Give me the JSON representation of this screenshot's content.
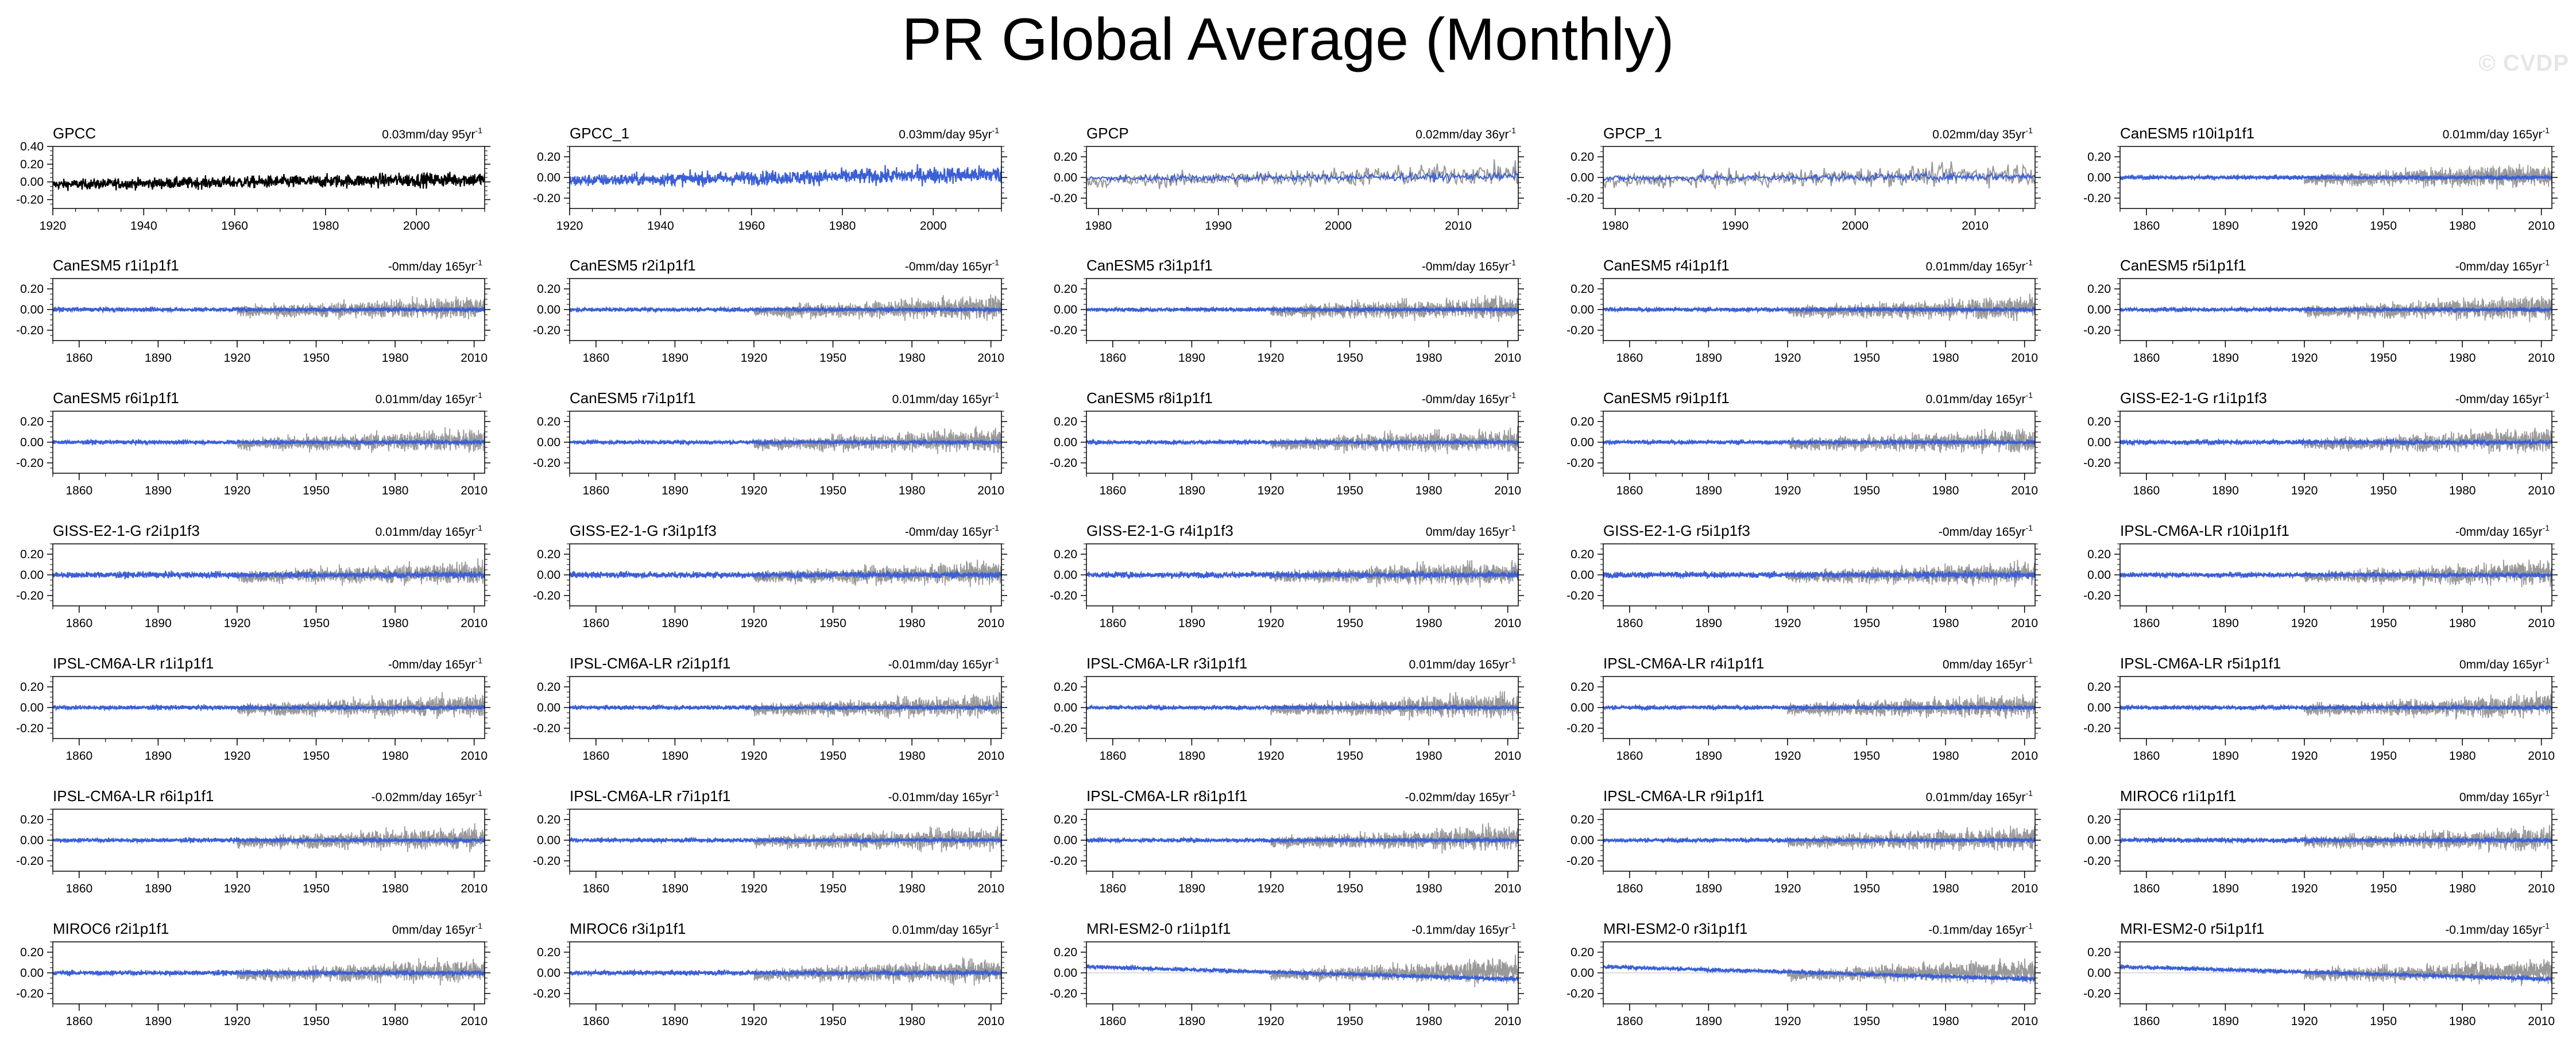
{
  "title": "PR Global Average (Monthly)",
  "watermark": "© CVDP",
  "colors": {
    "obs": "#000000",
    "obs_bg": "#999999",
    "model": "#3a5fd6"
  },
  "chart_data": {
    "type": "line",
    "panels": [
      {
        "name": "GPCC",
        "trend": "0.03mm/day 95yr",
        "style": "obs-black",
        "xlim": [
          1920,
          2015
        ],
        "ylim": [
          -0.3,
          0.4
        ],
        "xticks": [
          1920,
          1940,
          1960,
          1980,
          2000
        ],
        "yticks": [
          "-0.20",
          "0.00",
          "0.20",
          "0.40"
        ],
        "amp": 0.1
      },
      {
        "name": "GPCC_1",
        "trend": "0.03mm/day 95yr",
        "style": "blue",
        "xlim": [
          1920,
          2015
        ],
        "ylim": [
          -0.3,
          0.3
        ],
        "xticks": [
          1920,
          1940,
          1960,
          1980,
          2000
        ],
        "yticks": [
          "-0.20",
          "0.00",
          "0.20"
        ],
        "amp": 0.1
      },
      {
        "name": "GPCP",
        "trend": "0.02mm/day 36yr",
        "style": "blue-over-gray",
        "xlim": [
          1979,
          2015
        ],
        "ylim": [
          -0.3,
          0.3
        ],
        "xticks": [
          1980,
          1990,
          2000,
          2010
        ],
        "yticks": [
          "-0.20",
          "0.00",
          "0.20"
        ],
        "amp": 0.05
      },
      {
        "name": "GPCP_1",
        "trend": "0.02mm/day 35yr",
        "style": "blue-over-gray",
        "xlim": [
          1979,
          2015
        ],
        "ylim": [
          -0.3,
          0.3
        ],
        "xticks": [
          1980,
          1990,
          2000,
          2010
        ],
        "yticks": [
          "-0.20",
          "0.00",
          "0.20"
        ],
        "amp": 0.05
      },
      {
        "name": "CanESM5 r10i1p1f1",
        "trend": "0.01mm/day 165yr",
        "style": "model",
        "amp": 0.035
      },
      {
        "name": "CanESM5 r1i1p1f1",
        "trend": "-0mm/day 165yr",
        "style": "model",
        "amp": 0.035
      },
      {
        "name": "CanESM5 r2i1p1f1",
        "trend": "-0mm/day 165yr",
        "style": "model",
        "amp": 0.035
      },
      {
        "name": "CanESM5 r3i1p1f1",
        "trend": "-0mm/day 165yr",
        "style": "model",
        "amp": 0.035
      },
      {
        "name": "CanESM5 r4i1p1f1",
        "trend": "0.01mm/day 165yr",
        "style": "model",
        "amp": 0.035
      },
      {
        "name": "CanESM5 r5i1p1f1",
        "trend": "-0mm/day 165yr",
        "style": "model",
        "amp": 0.035
      },
      {
        "name": "CanESM5 r6i1p1f1",
        "trend": "0.01mm/day 165yr",
        "style": "model",
        "amp": 0.035
      },
      {
        "name": "CanESM5 r7i1p1f1",
        "trend": "0.01mm/day 165yr",
        "style": "model",
        "amp": 0.035
      },
      {
        "name": "CanESM5 r8i1p1f1",
        "trend": "-0mm/day 165yr",
        "style": "model",
        "amp": 0.035
      },
      {
        "name": "CanESM5 r9i1p1f1",
        "trend": "0.01mm/day 165yr",
        "style": "model",
        "amp": 0.035
      },
      {
        "name": "GISS-E2-1-G r1i1p1f3",
        "trend": "-0mm/day 165yr",
        "style": "model",
        "amp": 0.04
      },
      {
        "name": "GISS-E2-1-G r2i1p1f3",
        "trend": "0.01mm/day 165yr",
        "style": "model",
        "amp": 0.05
      },
      {
        "name": "GISS-E2-1-G r3i1p1f3",
        "trend": "-0mm/day 165yr",
        "style": "model",
        "amp": 0.05
      },
      {
        "name": "GISS-E2-1-G r4i1p1f3",
        "trend": "0mm/day 165yr",
        "style": "model",
        "amp": 0.05
      },
      {
        "name": "GISS-E2-1-G r5i1p1f3",
        "trend": "-0mm/day 165yr",
        "style": "model",
        "amp": 0.05
      },
      {
        "name": "IPSL-CM6A-LR r10i1p1f1",
        "trend": "-0mm/day 165yr",
        "style": "model",
        "amp": 0.04
      },
      {
        "name": "IPSL-CM6A-LR r1i1p1f1",
        "trend": "-0mm/day 165yr",
        "style": "model",
        "amp": 0.035
      },
      {
        "name": "IPSL-CM6A-LR r2i1p1f1",
        "trend": "-0.01mm/day 165yr",
        "style": "model",
        "amp": 0.035
      },
      {
        "name": "IPSL-CM6A-LR r3i1p1f1",
        "trend": "0.01mm/day 165yr",
        "style": "model",
        "amp": 0.035
      },
      {
        "name": "IPSL-CM6A-LR r4i1p1f1",
        "trend": "0mm/day 165yr",
        "style": "model",
        "amp": 0.035
      },
      {
        "name": "IPSL-CM6A-LR r5i1p1f1",
        "trend": "0mm/day 165yr",
        "style": "model",
        "amp": 0.035
      },
      {
        "name": "IPSL-CM6A-LR r6i1p1f1",
        "trend": "-0.02mm/day 165yr",
        "style": "model",
        "amp": 0.035
      },
      {
        "name": "IPSL-CM6A-LR r7i1p1f1",
        "trend": "-0.01mm/day 165yr",
        "style": "model",
        "amp": 0.035
      },
      {
        "name": "IPSL-CM6A-LR r8i1p1f1",
        "trend": "-0.02mm/day 165yr",
        "style": "model",
        "amp": 0.035
      },
      {
        "name": "IPSL-CM6A-LR r9i1p1f1",
        "trend": "0.01mm/day 165yr",
        "style": "model",
        "amp": 0.035
      },
      {
        "name": "MIROC6 r1i1p1f1",
        "trend": "0mm/day 165yr",
        "style": "model",
        "amp": 0.04
      },
      {
        "name": "MIROC6 r2i1p1f1",
        "trend": "0mm/day 165yr",
        "style": "model",
        "amp": 0.04
      },
      {
        "name": "MIROC6 r3i1p1f1",
        "trend": "0.01mm/day 165yr",
        "style": "model",
        "amp": 0.04
      },
      {
        "name": "MRI-ESM2-0 r1i1p1f1",
        "trend": "-0.1mm/day 165yr",
        "style": "model-declining",
        "amp": 0.035
      },
      {
        "name": "MRI-ESM2-0 r3i1p1f1",
        "trend": "-0.1mm/day 165yr",
        "style": "model-declining",
        "amp": 0.035
      },
      {
        "name": "MRI-ESM2-0 r5i1p1f1",
        "trend": "-0.1mm/day 165yr",
        "style": "model-declining",
        "amp": 0.035
      }
    ],
    "model_defaults": {
      "xlim": [
        1850,
        2014
      ],
      "ylim": [
        -0.3,
        0.3
      ],
      "xticks": [
        1860,
        1890,
        1920,
        1950,
        1980,
        2010
      ],
      "yticks": [
        "-0.20",
        "0.00",
        "0.20"
      ]
    },
    "obs_overlay": {
      "name": "GPCC",
      "xlim": [
        1920,
        2015
      ]
    },
    "trend_unit_exponent": "-1"
  }
}
